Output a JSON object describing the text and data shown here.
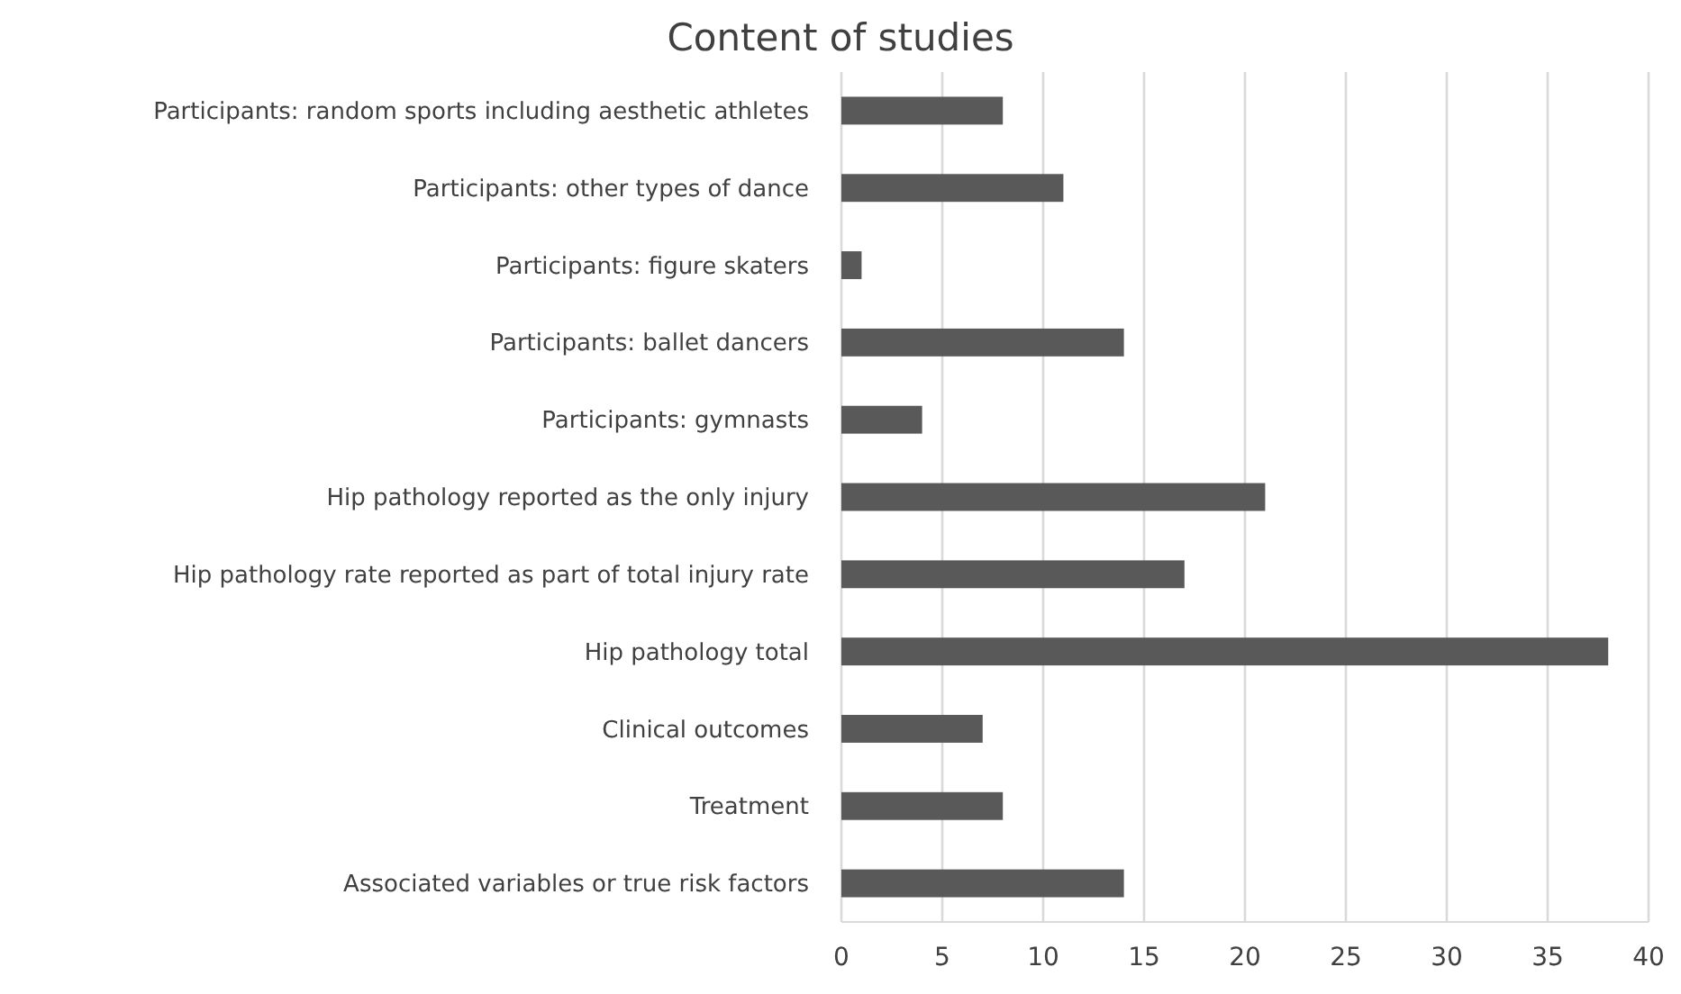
{
  "chart_data": {
    "type": "bar",
    "orientation": "horizontal",
    "title": "Content of studies",
    "categories": [
      "Participants: random sports including aesthetic athletes",
      "Participants: other types of dance",
      "Participants: figure skaters",
      "Participants: ballet dancers",
      "Participants: gymnasts",
      "Hip pathology reported as the only injury",
      "Hip pathology rate reported as part of total injury rate",
      "Hip pathology total",
      "Clinical outcomes",
      "Treatment",
      "Associated variables or true risk factors"
    ],
    "values": [
      8,
      11,
      1,
      14,
      4,
      21,
      17,
      38,
      7,
      8,
      14
    ],
    "color": "#595959",
    "xlim": [
      0,
      40
    ],
    "xticks": [
      0,
      5,
      10,
      15,
      20,
      25,
      30,
      35,
      40
    ],
    "grid": "x"
  }
}
